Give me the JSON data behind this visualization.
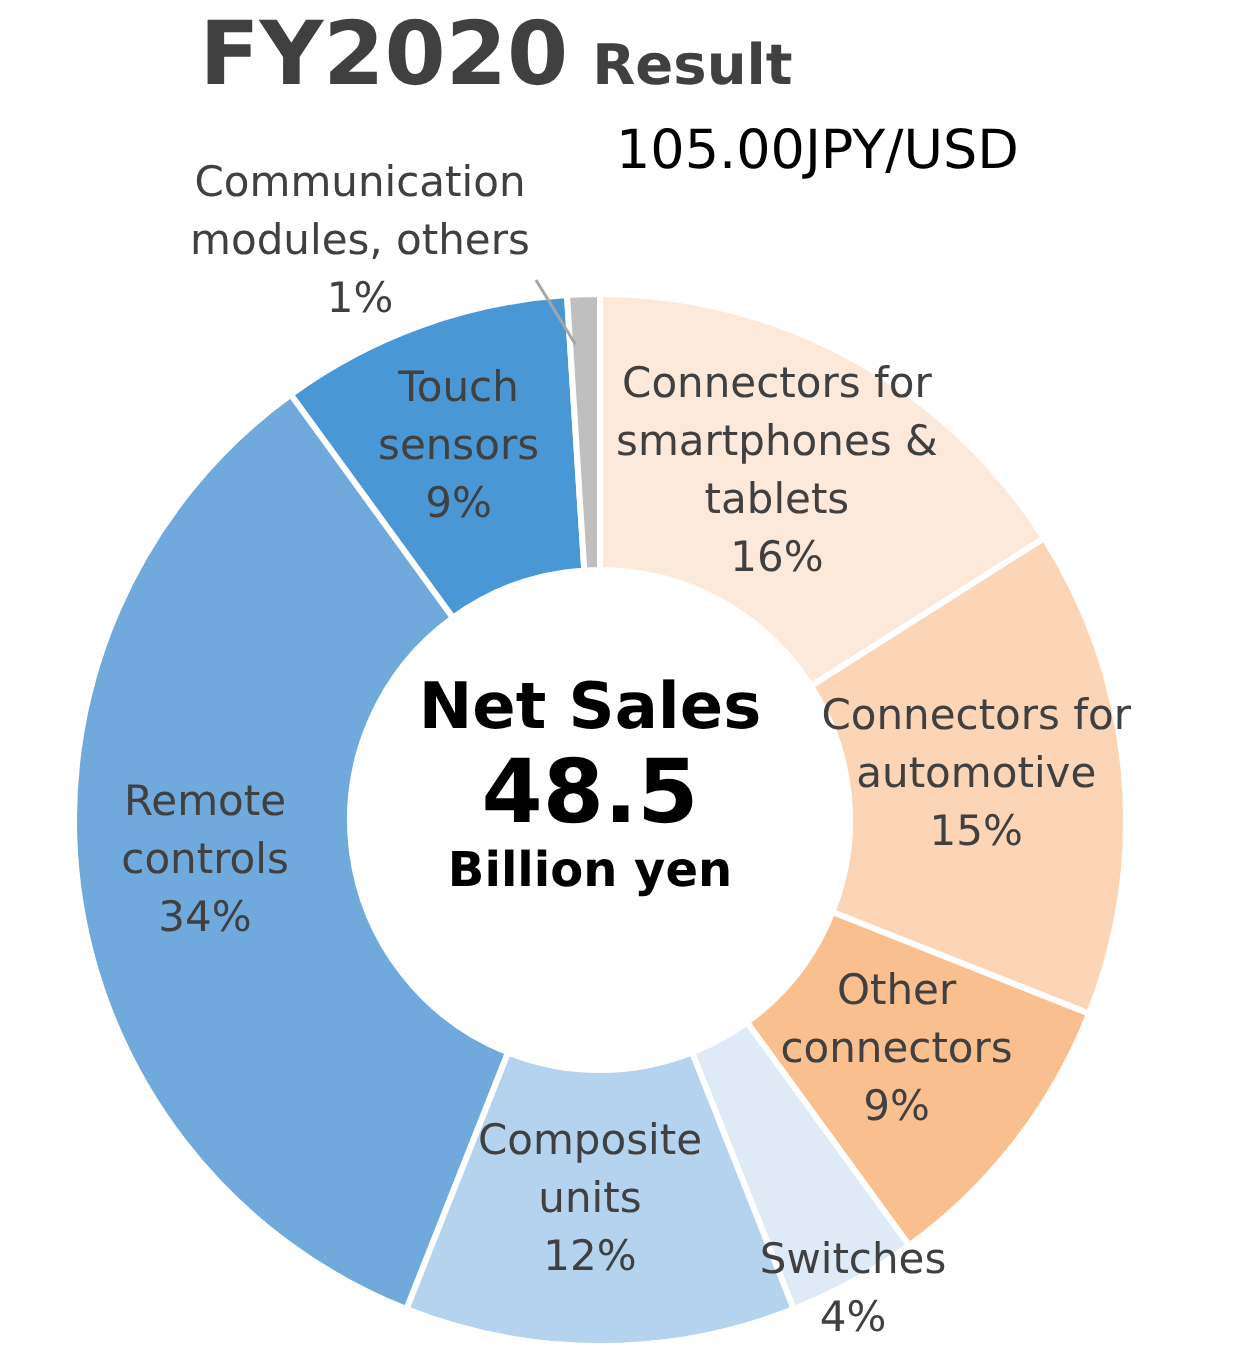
{
  "chart_data": {
    "type": "donut",
    "title": "FY2020",
    "subtitle": "Result",
    "annotations": [
      "105.00JPY/USD",
      "Net Sales",
      "48.5",
      "Billion yen"
    ],
    "categories": [
      "Connectors for smartphones & tablets",
      "Connectors for automotive",
      "Other connectors",
      "Switches",
      "Composite units",
      "Remote controls",
      "Touch sensors",
      "Communication modules, others"
    ],
    "values": [
      16,
      15,
      9,
      4,
      12,
      34,
      9,
      1
    ],
    "value_labels": [
      "16%",
      "15%",
      "9%",
      "4%",
      "12%",
      "34%",
      "9%",
      "1%"
    ],
    "colors": [
      "#fde9d9",
      "#fbd5b5",
      "#f9bf8f",
      "#deebf7",
      "#b4d3ee",
      "#70aadc",
      "#4a97d6",
      "#bfbfbf"
    ]
  }
}
